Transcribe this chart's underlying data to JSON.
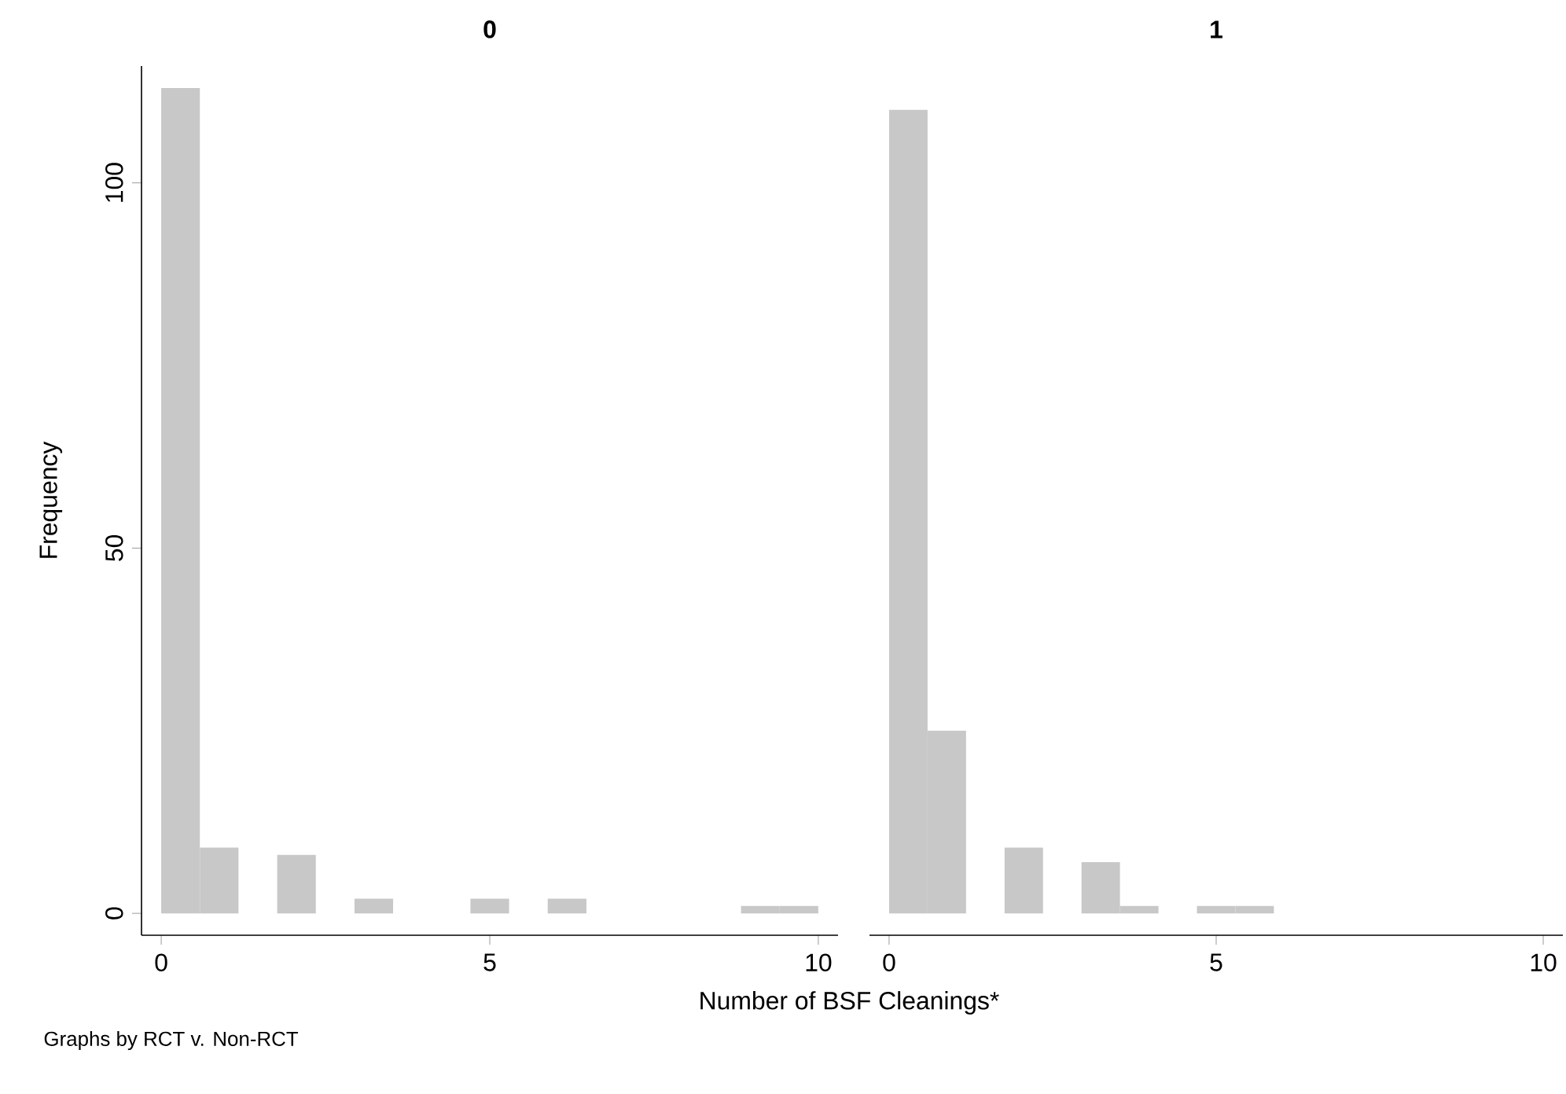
{
  "chart_data": [
    {
      "type": "histogram",
      "title": "0",
      "xlabel": "Number of BSF Cleanings*",
      "ylabel": "Frequency",
      "annotations": [
        "Graphs by RCT v. Non-RCT"
      ],
      "color": "#c8c8c8",
      "bins": [
        0,
        0.588,
        1.176,
        1.765,
        2.353,
        2.941,
        3.529,
        4.118,
        4.706,
        5.294,
        5.882,
        6.471,
        7.059,
        7.647,
        8.235,
        8.824,
        9.412,
        10
      ],
      "values": [
        113,
        9,
        0,
        8,
        0,
        2,
        0,
        0,
        2,
        0,
        2,
        0,
        0,
        0,
        0,
        1,
        1
      ],
      "xlim": [
        -0.3,
        10.3
      ],
      "ylim": [
        -3,
        116
      ],
      "xticks": [
        0,
        5,
        10
      ],
      "yticks": [
        0,
        50,
        100
      ]
    },
    {
      "type": "histogram",
      "title": "1",
      "color": "#c8c8c8",
      "tick_labels": "x",
      "bins": [
        0,
        0.588,
        1.176,
        1.765,
        2.353,
        2.941,
        3.529,
        4.118,
        4.706,
        5.294,
        5.882,
        6.471,
        7.059,
        7.647,
        8.235,
        8.824,
        9.412,
        10
      ],
      "values": [
        110,
        25,
        0,
        9,
        0,
        7,
        1,
        0,
        1,
        1,
        0,
        0,
        0,
        0,
        0,
        0,
        0
      ],
      "xlim": [
        -0.3,
        10.3
      ],
      "xticks": [
        0,
        5,
        10
      ],
      "yticks": [
        0,
        50,
        100
      ]
    }
  ]
}
